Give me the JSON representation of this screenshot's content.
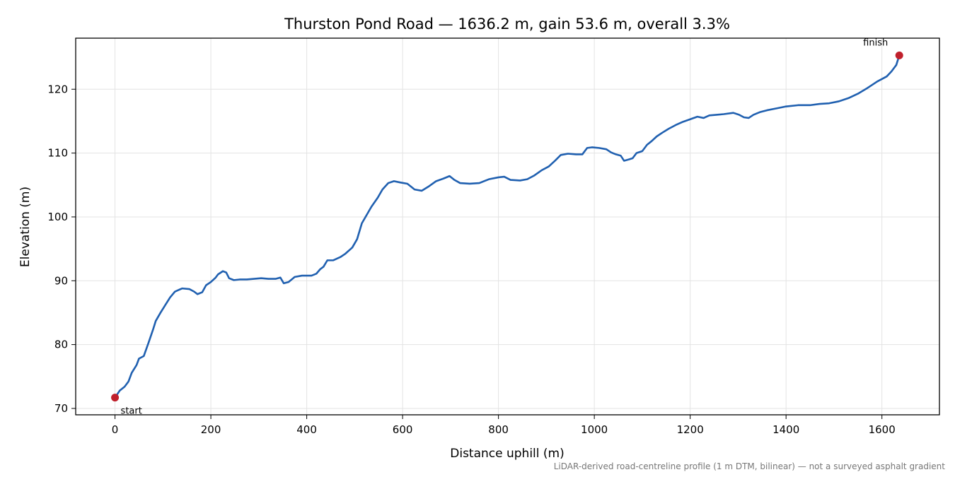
{
  "chart_data": {
    "type": "line",
    "title": "Thurston Pond Road — 1636.2 m, gain 53.6 m, overall 3.3%",
    "xlabel": "Distance uphill (m)",
    "ylabel": "Elevation (m)",
    "xlim": [
      -82,
      1636.2
    ],
    "ylim": [
      69.0,
      128.0
    ],
    "xticks": [
      0,
      200,
      400,
      600,
      800,
      1000,
      1200,
      1400,
      1600
    ],
    "yticks": [
      70,
      80,
      90,
      100,
      110,
      120
    ],
    "grid": true,
    "series": [
      {
        "color": "#2060b0",
        "points": [
          [
            0,
            71.7
          ],
          [
            10,
            72.8
          ],
          [
            20,
            73.4
          ],
          [
            28,
            74.2
          ],
          [
            35,
            75.6
          ],
          [
            45,
            76.8
          ],
          [
            50,
            77.8
          ],
          [
            60,
            78.2
          ],
          [
            70,
            80.3
          ],
          [
            80,
            82.5
          ],
          [
            85,
            83.7
          ],
          [
            95,
            85.0
          ],
          [
            105,
            86.2
          ],
          [
            115,
            87.4
          ],
          [
            125,
            88.3
          ],
          [
            140,
            88.8
          ],
          [
            155,
            88.7
          ],
          [
            165,
            88.3
          ],
          [
            172,
            87.9
          ],
          [
            182,
            88.2
          ],
          [
            190,
            89.3
          ],
          [
            200,
            89.8
          ],
          [
            210,
            90.5
          ],
          [
            215,
            91.0
          ],
          [
            225,
            91.5
          ],
          [
            232,
            91.3
          ],
          [
            238,
            90.4
          ],
          [
            248,
            90.1
          ],
          [
            260,
            90.2
          ],
          [
            275,
            90.2
          ],
          [
            290,
            90.3
          ],
          [
            305,
            90.4
          ],
          [
            320,
            90.3
          ],
          [
            335,
            90.3
          ],
          [
            345,
            90.5
          ],
          [
            352,
            89.6
          ],
          [
            362,
            89.8
          ],
          [
            375,
            90.6
          ],
          [
            390,
            90.8
          ],
          [
            410,
            90.8
          ],
          [
            420,
            91.1
          ],
          [
            428,
            91.8
          ],
          [
            435,
            92.2
          ],
          [
            443,
            93.2
          ],
          [
            455,
            93.2
          ],
          [
            470,
            93.7
          ],
          [
            480,
            94.2
          ],
          [
            495,
            95.2
          ],
          [
            505,
            96.5
          ],
          [
            515,
            99.0
          ],
          [
            525,
            100.3
          ],
          [
            535,
            101.6
          ],
          [
            548,
            103.0
          ],
          [
            558,
            104.3
          ],
          [
            570,
            105.3
          ],
          [
            582,
            105.6
          ],
          [
            595,
            105.4
          ],
          [
            610,
            105.2
          ],
          [
            625,
            104.3
          ],
          [
            640,
            104.1
          ],
          [
            655,
            104.8
          ],
          [
            670,
            105.6
          ],
          [
            685,
            106.0
          ],
          [
            698,
            106.4
          ],
          [
            708,
            105.8
          ],
          [
            720,
            105.3
          ],
          [
            740,
            105.2
          ],
          [
            760,
            105.3
          ],
          [
            780,
            105.9
          ],
          [
            800,
            106.2
          ],
          [
            812,
            106.3
          ],
          [
            825,
            105.8
          ],
          [
            845,
            105.7
          ],
          [
            860,
            105.9
          ],
          [
            875,
            106.5
          ],
          [
            890,
            107.3
          ],
          [
            905,
            107.9
          ],
          [
            918,
            108.8
          ],
          [
            930,
            109.7
          ],
          [
            945,
            109.9
          ],
          [
            962,
            109.8
          ],
          [
            975,
            109.8
          ],
          [
            985,
            110.8
          ],
          [
            995,
            110.9
          ],
          [
            1010,
            110.8
          ],
          [
            1025,
            110.6
          ],
          [
            1035,
            110.1
          ],
          [
            1045,
            109.8
          ],
          [
            1055,
            109.6
          ],
          [
            1062,
            108.8
          ],
          [
            1072,
            109.0
          ],
          [
            1080,
            109.2
          ],
          [
            1088,
            110.0
          ],
          [
            1100,
            110.3
          ],
          [
            1110,
            111.3
          ],
          [
            1120,
            111.9
          ],
          [
            1130,
            112.6
          ],
          [
            1142,
            113.2
          ],
          [
            1155,
            113.8
          ],
          [
            1170,
            114.4
          ],
          [
            1185,
            114.9
          ],
          [
            1200,
            115.3
          ],
          [
            1215,
            115.7
          ],
          [
            1228,
            115.5
          ],
          [
            1240,
            115.9
          ],
          [
            1255,
            116.0
          ],
          [
            1270,
            116.1
          ],
          [
            1290,
            116.3
          ],
          [
            1302,
            116.0
          ],
          [
            1312,
            115.6
          ],
          [
            1322,
            115.5
          ],
          [
            1332,
            116.0
          ],
          [
            1345,
            116.4
          ],
          [
            1360,
            116.7
          ],
          [
            1380,
            117.0
          ],
          [
            1400,
            117.3
          ],
          [
            1425,
            117.5
          ],
          [
            1450,
            117.5
          ],
          [
            1470,
            117.7
          ],
          [
            1490,
            117.8
          ],
          [
            1510,
            118.1
          ],
          [
            1530,
            118.6
          ],
          [
            1550,
            119.3
          ],
          [
            1570,
            120.2
          ],
          [
            1590,
            121.2
          ],
          [
            1610,
            122.0
          ],
          [
            1620,
            122.8
          ],
          [
            1630,
            123.8
          ],
          [
            1636.2,
            125.3
          ]
        ]
      }
    ],
    "markers": [
      {
        "label": "start",
        "x": 0,
        "y": 71.7,
        "color": "#c0202c"
      },
      {
        "label": "finish",
        "x": 1636.2,
        "y": 125.3,
        "color": "#c0202c"
      }
    ],
    "footnote": "LiDAR-derived road-centreline profile (1 m DTM, bilinear) — not a surveyed asphalt gradient"
  }
}
